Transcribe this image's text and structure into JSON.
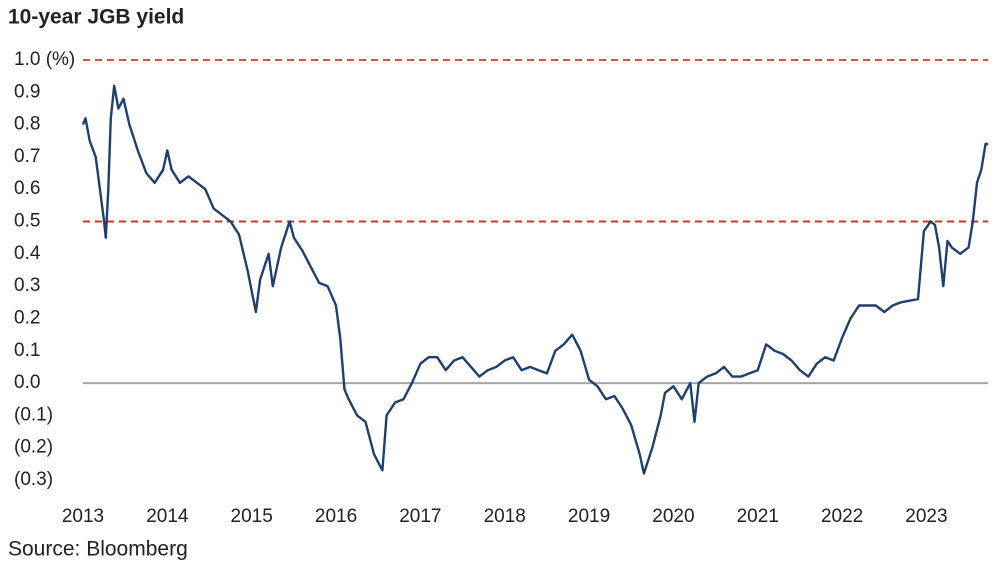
{
  "chart_data": {
    "type": "line",
    "title": "10-year JGB yield",
    "source": "Source: Bloomberg",
    "color": "#1f3f6e",
    "grid": false,
    "xlim": [
      2013,
      2023.73
    ],
    "xticks": [
      2013,
      2014,
      2015,
      2016,
      2017,
      2018,
      2019,
      2020,
      2021,
      2022,
      2023
    ],
    "ylim": [
      -0.3,
      1.0
    ],
    "yticks": [
      {
        "value": 1.0,
        "label": "1.0 (%)"
      },
      0.9,
      0.8,
      0.7,
      0.6,
      {
        "value": 0.5,
        "label": "0.5"
      },
      0.4,
      0.3,
      0.2,
      0.1,
      {
        "value": 0,
        "label": "0.0"
      },
      {
        "value": -0.1,
        "label": "(0.1)"
      },
      {
        "value": -0.2,
        "label": "(0.2)"
      },
      {
        "value": -0.3,
        "label": "(0.3)"
      }
    ],
    "reference_lines": [
      {
        "value": 1.0,
        "color": "#d9513a",
        "dashed": true
      },
      {
        "value": 0.5,
        "color": "#c0392b",
        "dashed": true
      },
      {
        "value": 0,
        "color": "#a6a6a6",
        "dashed": false
      }
    ],
    "x": [
      2013.0,
      2013.03,
      2013.08,
      2013.15,
      2013.2,
      2013.25,
      2013.27,
      2013.3,
      2013.33,
      2013.37,
      2013.42,
      2013.48,
      2013.55,
      2013.65,
      2013.75,
      2013.85,
      2013.95,
      2014.0,
      2014.05,
      2014.15,
      2014.25,
      2014.35,
      2014.45,
      2014.55,
      2014.65,
      2014.75,
      2014.85,
      2014.95,
      2015.05,
      2015.1,
      2015.2,
      2015.25,
      2015.35,
      2015.45,
      2015.5,
      2015.6,
      2015.7,
      2015.8,
      2015.9,
      2016.0,
      2016.05,
      2016.1,
      2016.15,
      2016.25,
      2016.35,
      2016.45,
      2016.55,
      2016.6,
      2016.7,
      2016.8,
      2016.9,
      2017.0,
      2017.1,
      2017.2,
      2017.3,
      2017.4,
      2017.5,
      2017.6,
      2017.7,
      2017.8,
      2017.9,
      2018.0,
      2018.1,
      2018.2,
      2018.3,
      2018.4,
      2018.5,
      2018.6,
      2018.7,
      2018.8,
      2018.9,
      2019.0,
      2019.1,
      2019.2,
      2019.3,
      2019.4,
      2019.5,
      2019.6,
      2019.65,
      2019.75,
      2019.85,
      2019.9,
      2020.0,
      2020.1,
      2020.2,
      2020.25,
      2020.3,
      2020.4,
      2020.5,
      2020.6,
      2020.7,
      2020.8,
      2020.9,
      2021.0,
      2021.1,
      2021.2,
      2021.3,
      2021.4,
      2021.5,
      2021.6,
      2021.7,
      2021.8,
      2021.9,
      2022.0,
      2022.1,
      2022.2,
      2022.3,
      2022.4,
      2022.5,
      2022.6,
      2022.7,
      2022.9,
      2022.97,
      2023.05,
      2023.1,
      2023.15,
      2023.2,
      2023.25,
      2023.3,
      2023.4,
      2023.5,
      2023.55,
      2023.6,
      2023.65,
      2023.7,
      2023.73
    ],
    "values": [
      0.8,
      0.82,
      0.75,
      0.7,
      0.6,
      0.5,
      0.45,
      0.6,
      0.82,
      0.92,
      0.85,
      0.88,
      0.8,
      0.72,
      0.65,
      0.62,
      0.66,
      0.72,
      0.66,
      0.62,
      0.64,
      0.62,
      0.6,
      0.54,
      0.52,
      0.5,
      0.46,
      0.35,
      0.22,
      0.32,
      0.4,
      0.3,
      0.42,
      0.5,
      0.45,
      0.41,
      0.36,
      0.31,
      0.3,
      0.24,
      0.14,
      -0.02,
      -0.05,
      -0.1,
      -0.12,
      -0.22,
      -0.27,
      -0.1,
      -0.06,
      -0.05,
      0.0,
      0.06,
      0.08,
      0.08,
      0.04,
      0.07,
      0.08,
      0.05,
      0.02,
      0.04,
      0.05,
      0.07,
      0.08,
      0.04,
      0.05,
      0.04,
      0.03,
      0.1,
      0.12,
      0.15,
      0.1,
      0.01,
      -0.01,
      -0.05,
      -0.04,
      -0.08,
      -0.13,
      -0.22,
      -0.28,
      -0.2,
      -0.1,
      -0.03,
      -0.01,
      -0.05,
      0.0,
      -0.12,
      0.0,
      0.02,
      0.03,
      0.05,
      0.02,
      0.02,
      0.03,
      0.04,
      0.12,
      0.1,
      0.09,
      0.07,
      0.04,
      0.02,
      0.06,
      0.08,
      0.07,
      0.14,
      0.2,
      0.24,
      0.24,
      0.24,
      0.22,
      0.24,
      0.25,
      0.26,
      0.47,
      0.5,
      0.49,
      0.42,
      0.3,
      0.44,
      0.42,
      0.4,
      0.42,
      0.5,
      0.62,
      0.66,
      0.74,
      0.74
    ]
  }
}
